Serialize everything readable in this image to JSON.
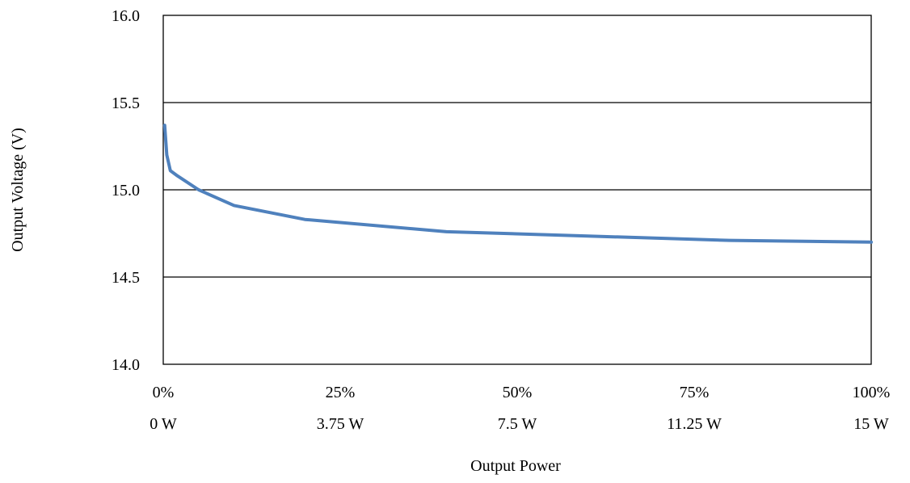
{
  "chart_data": {
    "type": "line",
    "title": "",
    "xlabel": "Output Power",
    "ylabel": "Output Voltage (V)",
    "xlim": [
      0,
      100
    ],
    "ylim": [
      14.0,
      16.0
    ],
    "grid": "horizontal",
    "legend": "none",
    "y_ticks": [
      "16.0",
      "15.5",
      "15.0",
      "14.5",
      "14.0"
    ],
    "x_ticks": [
      {
        "value": 0,
        "percent_label": "0%",
        "watt_label": "0 W"
      },
      {
        "value": 25,
        "percent_label": "25%",
        "watt_label": "3.75 W"
      },
      {
        "value": 50,
        "percent_label": "50%",
        "watt_label": "7.5 W"
      },
      {
        "value": 75,
        "percent_label": "75%",
        "watt_label": "11.25 W"
      },
      {
        "value": 100,
        "percent_label": "100%",
        "watt_label": "15 W"
      }
    ],
    "series": [
      {
        "color": "#4F81BD",
        "x": [
          0.2,
          0.5,
          1,
          2,
          5,
          10,
          20,
          40,
          60,
          80,
          100
        ],
        "y": [
          15.37,
          15.2,
          15.11,
          15.08,
          15.0,
          14.91,
          14.83,
          14.76,
          14.735,
          14.71,
          14.7
        ]
      }
    ]
  }
}
